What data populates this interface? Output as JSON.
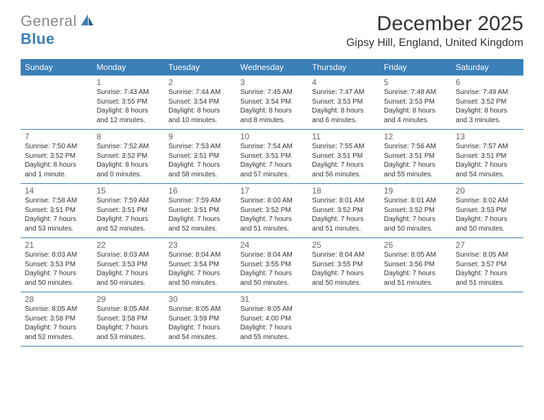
{
  "logo": {
    "part1": "General",
    "part2": "Blue"
  },
  "title": "December 2025",
  "location": "Gipsy Hill, England, United Kingdom",
  "colors": {
    "header_bg": "#3b7fb8",
    "header_text": "#ffffff",
    "border": "#3b7fb8",
    "daynum": "#666666",
    "body": "#333333",
    "logo_gray": "#8a8a8a",
    "logo_blue": "#3b7fb8",
    "page_bg": "#ffffff"
  },
  "dayNames": [
    "Sunday",
    "Monday",
    "Tuesday",
    "Wednesday",
    "Thursday",
    "Friday",
    "Saturday"
  ],
  "weeks": [
    [
      null,
      {
        "n": "1",
        "sr": "Sunrise: 7:43 AM",
        "ss": "Sunset: 3:55 PM",
        "dl": "Daylight: 8 hours and 12 minutes."
      },
      {
        "n": "2",
        "sr": "Sunrise: 7:44 AM",
        "ss": "Sunset: 3:54 PM",
        "dl": "Daylight: 8 hours and 10 minutes."
      },
      {
        "n": "3",
        "sr": "Sunrise: 7:45 AM",
        "ss": "Sunset: 3:54 PM",
        "dl": "Daylight: 8 hours and 8 minutes."
      },
      {
        "n": "4",
        "sr": "Sunrise: 7:47 AM",
        "ss": "Sunset: 3:53 PM",
        "dl": "Daylight: 8 hours and 6 minutes."
      },
      {
        "n": "5",
        "sr": "Sunrise: 7:48 AM",
        "ss": "Sunset: 3:53 PM",
        "dl": "Daylight: 8 hours and 4 minutes."
      },
      {
        "n": "6",
        "sr": "Sunrise: 7:49 AM",
        "ss": "Sunset: 3:52 PM",
        "dl": "Daylight: 8 hours and 3 minutes."
      }
    ],
    [
      {
        "n": "7",
        "sr": "Sunrise: 7:50 AM",
        "ss": "Sunset: 3:52 PM",
        "dl": "Daylight: 8 hours and 1 minute."
      },
      {
        "n": "8",
        "sr": "Sunrise: 7:52 AM",
        "ss": "Sunset: 3:52 PM",
        "dl": "Daylight: 8 hours and 0 minutes."
      },
      {
        "n": "9",
        "sr": "Sunrise: 7:53 AM",
        "ss": "Sunset: 3:51 PM",
        "dl": "Daylight: 7 hours and 58 minutes."
      },
      {
        "n": "10",
        "sr": "Sunrise: 7:54 AM",
        "ss": "Sunset: 3:51 PM",
        "dl": "Daylight: 7 hours and 57 minutes."
      },
      {
        "n": "11",
        "sr": "Sunrise: 7:55 AM",
        "ss": "Sunset: 3:51 PM",
        "dl": "Daylight: 7 hours and 56 minutes."
      },
      {
        "n": "12",
        "sr": "Sunrise: 7:56 AM",
        "ss": "Sunset: 3:51 PM",
        "dl": "Daylight: 7 hours and 55 minutes."
      },
      {
        "n": "13",
        "sr": "Sunrise: 7:57 AM",
        "ss": "Sunset: 3:51 PM",
        "dl": "Daylight: 7 hours and 54 minutes."
      }
    ],
    [
      {
        "n": "14",
        "sr": "Sunrise: 7:58 AM",
        "ss": "Sunset: 3:51 PM",
        "dl": "Daylight: 7 hours and 53 minutes."
      },
      {
        "n": "15",
        "sr": "Sunrise: 7:59 AM",
        "ss": "Sunset: 3:51 PM",
        "dl": "Daylight: 7 hours and 52 minutes."
      },
      {
        "n": "16",
        "sr": "Sunrise: 7:59 AM",
        "ss": "Sunset: 3:51 PM",
        "dl": "Daylight: 7 hours and 52 minutes."
      },
      {
        "n": "17",
        "sr": "Sunrise: 8:00 AM",
        "ss": "Sunset: 3:52 PM",
        "dl": "Daylight: 7 hours and 51 minutes."
      },
      {
        "n": "18",
        "sr": "Sunrise: 8:01 AM",
        "ss": "Sunset: 3:52 PM",
        "dl": "Daylight: 7 hours and 51 minutes."
      },
      {
        "n": "19",
        "sr": "Sunrise: 8:01 AM",
        "ss": "Sunset: 3:52 PM",
        "dl": "Daylight: 7 hours and 50 minutes."
      },
      {
        "n": "20",
        "sr": "Sunrise: 8:02 AM",
        "ss": "Sunset: 3:53 PM",
        "dl": "Daylight: 7 hours and 50 minutes."
      }
    ],
    [
      {
        "n": "21",
        "sr": "Sunrise: 8:03 AM",
        "ss": "Sunset: 3:53 PM",
        "dl": "Daylight: 7 hours and 50 minutes."
      },
      {
        "n": "22",
        "sr": "Sunrise: 8:03 AM",
        "ss": "Sunset: 3:53 PM",
        "dl": "Daylight: 7 hours and 50 minutes."
      },
      {
        "n": "23",
        "sr": "Sunrise: 8:04 AM",
        "ss": "Sunset: 3:54 PM",
        "dl": "Daylight: 7 hours and 50 minutes."
      },
      {
        "n": "24",
        "sr": "Sunrise: 8:04 AM",
        "ss": "Sunset: 3:55 PM",
        "dl": "Daylight: 7 hours and 50 minutes."
      },
      {
        "n": "25",
        "sr": "Sunrise: 8:04 AM",
        "ss": "Sunset: 3:55 PM",
        "dl": "Daylight: 7 hours and 50 minutes."
      },
      {
        "n": "26",
        "sr": "Sunrise: 8:05 AM",
        "ss": "Sunset: 3:56 PM",
        "dl": "Daylight: 7 hours and 51 minutes."
      },
      {
        "n": "27",
        "sr": "Sunrise: 8:05 AM",
        "ss": "Sunset: 3:57 PM",
        "dl": "Daylight: 7 hours and 51 minutes."
      }
    ],
    [
      {
        "n": "28",
        "sr": "Sunrise: 8:05 AM",
        "ss": "Sunset: 3:58 PM",
        "dl": "Daylight: 7 hours and 52 minutes."
      },
      {
        "n": "29",
        "sr": "Sunrise: 8:05 AM",
        "ss": "Sunset: 3:58 PM",
        "dl": "Daylight: 7 hours and 53 minutes."
      },
      {
        "n": "30",
        "sr": "Sunrise: 8:05 AM",
        "ss": "Sunset: 3:59 PM",
        "dl": "Daylight: 7 hours and 54 minutes."
      },
      {
        "n": "31",
        "sr": "Sunrise: 8:05 AM",
        "ss": "Sunset: 4:00 PM",
        "dl": "Daylight: 7 hours and 55 minutes."
      },
      null,
      null,
      null
    ]
  ]
}
